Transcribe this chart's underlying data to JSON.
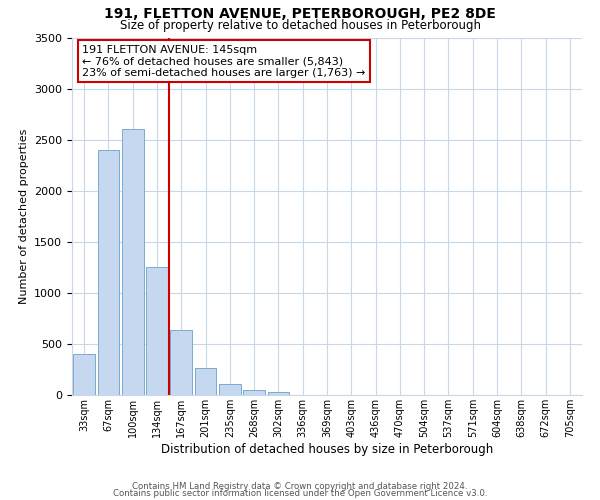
{
  "title": "191, FLETTON AVENUE, PETERBOROUGH, PE2 8DE",
  "subtitle": "Size of property relative to detached houses in Peterborough",
  "xlabel": "Distribution of detached houses by size in Peterborough",
  "ylabel": "Number of detached properties",
  "categories": [
    "33sqm",
    "67sqm",
    "100sqm",
    "134sqm",
    "167sqm",
    "201sqm",
    "235sqm",
    "268sqm",
    "302sqm",
    "336sqm",
    "369sqm",
    "403sqm",
    "436sqm",
    "470sqm",
    "504sqm",
    "537sqm",
    "571sqm",
    "604sqm",
    "638sqm",
    "672sqm",
    "705sqm"
  ],
  "values": [
    400,
    2400,
    2600,
    1250,
    640,
    260,
    110,
    50,
    30,
    0,
    0,
    0,
    0,
    0,
    0,
    0,
    0,
    0,
    0,
    0,
    0
  ],
  "bar_color": "#c5d8f0",
  "bar_edge_color": "#7aaad0",
  "vline_color": "#cc0000",
  "annotation_title": "191 FLETTON AVENUE: 145sqm",
  "annotation_line1": "← 76% of detached houses are smaller (5,843)",
  "annotation_line2": "23% of semi-detached houses are larger (1,763) →",
  "annotation_box_color": "#cc0000",
  "ylim": [
    0,
    3500
  ],
  "yticks": [
    0,
    500,
    1000,
    1500,
    2000,
    2500,
    3000,
    3500
  ],
  "background_color": "#ffffff",
  "grid_color": "#c8d8e8",
  "footer1": "Contains HM Land Registry data © Crown copyright and database right 2024.",
  "footer2": "Contains public sector information licensed under the Open Government Licence v3.0."
}
